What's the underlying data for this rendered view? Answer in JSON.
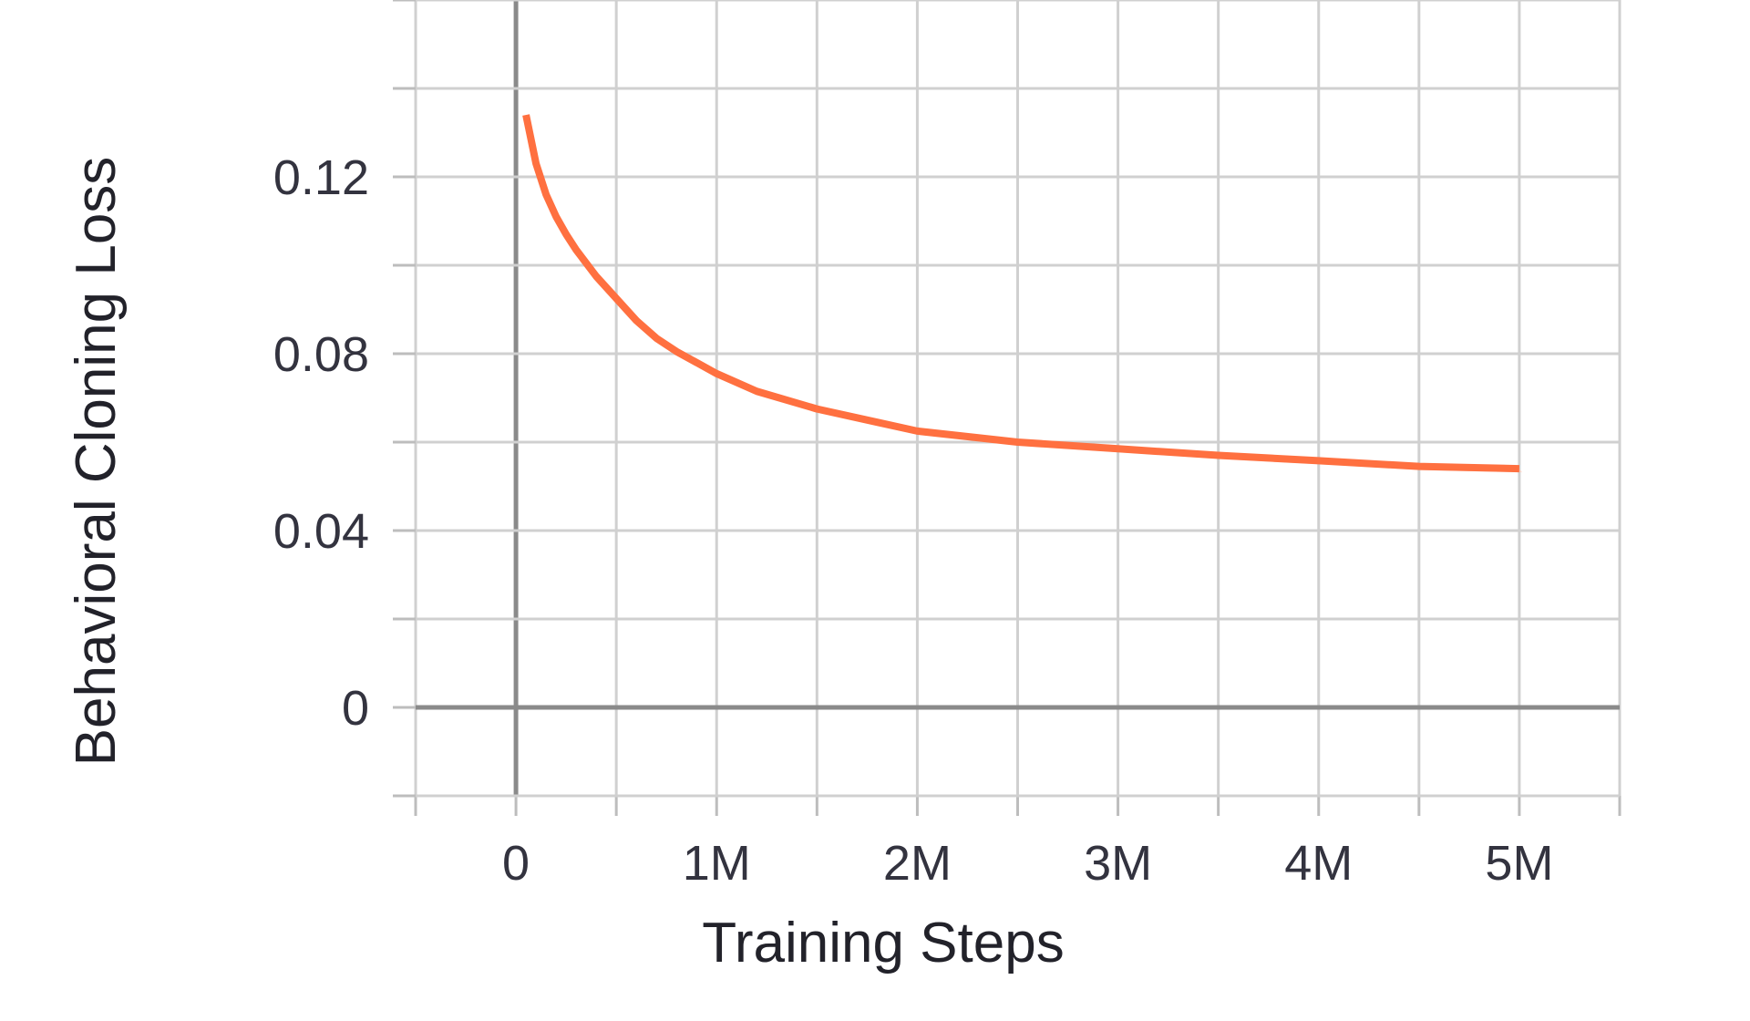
{
  "chart_data": {
    "type": "line",
    "xlabel": "Training Steps",
    "ylabel": "Behavioral Cloning Loss",
    "xlim": [
      -500000,
      5500000
    ],
    "ylim": [
      -0.02,
      0.16
    ],
    "x_ticks": [
      0,
      1000000,
      2000000,
      3000000,
      4000000,
      5000000
    ],
    "x_tick_labels": [
      "0",
      "1M",
      "2M",
      "3M",
      "4M",
      "5M"
    ],
    "y_ticks": [
      0,
      0.04,
      0.08,
      0.12
    ],
    "y_tick_labels": [
      "0",
      "0.04",
      "0.08",
      "0.12"
    ],
    "grid": true,
    "series": [
      {
        "color": "#ff7040",
        "band_color": "#ffc4b0",
        "x": [
          50000,
          100000,
          150000,
          200000,
          250000,
          300000,
          400000,
          500000,
          600000,
          700000,
          800000,
          1000000,
          1200000,
          1500000,
          1800000,
          2000000,
          2500000,
          3000000,
          3500000,
          4000000,
          4500000,
          5000000
        ],
        "y": [
          0.134,
          0.123,
          0.116,
          0.111,
          0.107,
          0.1035,
          0.0975,
          0.0925,
          0.0875,
          0.0835,
          0.0805,
          0.0755,
          0.0715,
          0.0675,
          0.0645,
          0.0625,
          0.06,
          0.0585,
          0.057,
          0.0558,
          0.0545,
          0.054
        ]
      }
    ]
  }
}
